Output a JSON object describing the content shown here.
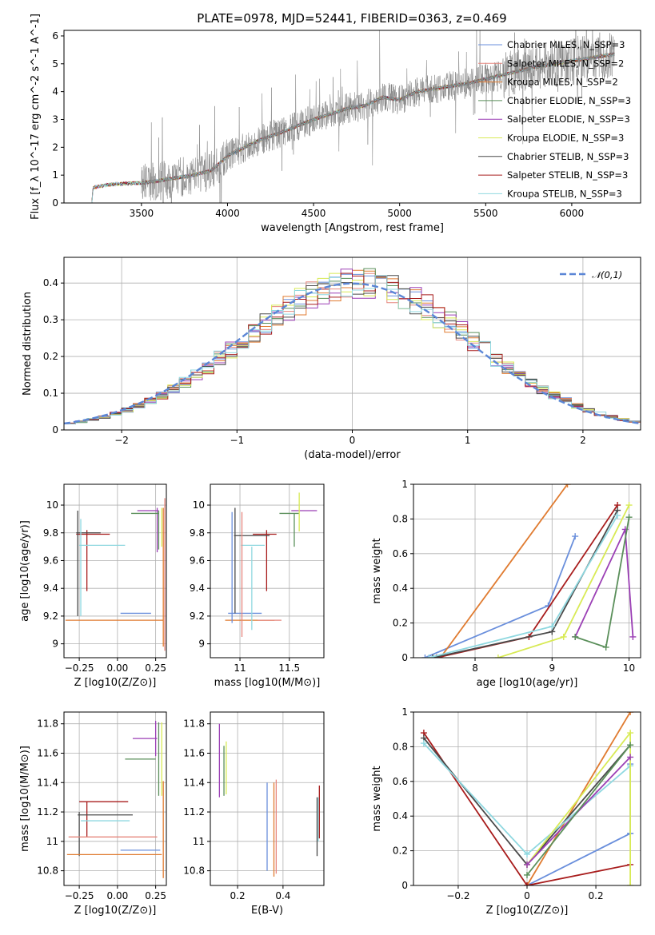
{
  "figure_title": "PLATE=0978, MJD=52441, FIBERID=0363, z=0.469",
  "models": [
    {
      "name": "Chabrier MILES, N_SSP=3",
      "color": "#6a8fdc"
    },
    {
      "name": "Salpeter MILES, N_SSP=2",
      "color": "#e6867d"
    },
    {
      "name": "Kroupa MILES, N_SSP=2",
      "color": "#e07b30"
    },
    {
      "name": "Chabrier ELODIE, N_SSP=3",
      "color": "#5a8f5a"
    },
    {
      "name": "Salpeter ELODIE, N_SSP=3",
      "color": "#9b3fb5"
    },
    {
      "name": "Kroupa ELODIE, N_SSP=3",
      "color": "#d8ea55"
    },
    {
      "name": "Chabrier STELIB, N_SSP=3",
      "color": "#4a4a4a"
    },
    {
      "name": "Salpeter STELIB, N_SSP=3",
      "color": "#a81c1c"
    },
    {
      "name": "Kroupa STELIB, N_SSP=3",
      "color": "#8fd8e0"
    }
  ],
  "chart_data": [
    {
      "id": "spectrum",
      "type": "line",
      "xlabel": "wavelength [Angstrom, rest frame]",
      "ylabel": "Flux [f_λ 10^-17 erg cm^-2 s^-1 A^-1]",
      "xlim": [
        3050,
        6400
      ],
      "ylim": [
        0,
        6.2
      ],
      "xticks": [
        3500,
        4000,
        4500,
        5000,
        5500,
        6000
      ],
      "yticks": [
        0,
        1,
        2,
        3,
        4,
        5,
        6
      ],
      "data_color": "#808080",
      "continuum": [
        [
          3200,
          0
        ],
        [
          3210,
          0.0
        ],
        [
          3220,
          0.55
        ],
        [
          3300,
          0.65
        ],
        [
          3400,
          0.7
        ],
        [
          3500,
          0.72
        ],
        [
          3600,
          0.8
        ],
        [
          3700,
          0.9
        ],
        [
          3800,
          1.0
        ],
        [
          3900,
          1.15
        ],
        [
          3950,
          1.4
        ],
        [
          4000,
          1.7
        ],
        [
          4100,
          2.0
        ],
        [
          4200,
          2.3
        ],
        [
          4300,
          2.5
        ],
        [
          4400,
          2.75
        ],
        [
          4500,
          3.0
        ],
        [
          4600,
          3.2
        ],
        [
          4700,
          3.4
        ],
        [
          4800,
          3.5
        ],
        [
          4900,
          3.8
        ],
        [
          5000,
          3.7
        ],
        [
          5100,
          4.0
        ],
        [
          5200,
          4.1
        ],
        [
          5300,
          4.2
        ],
        [
          5400,
          4.3
        ],
        [
          5500,
          4.45
        ],
        [
          5600,
          4.6
        ],
        [
          5700,
          4.75
        ],
        [
          5800,
          4.9
        ],
        [
          5900,
          5.0
        ],
        [
          6000,
          5.1
        ],
        [
          6100,
          5.2
        ],
        [
          6200,
          5.3
        ],
        [
          6250,
          5.35
        ]
      ],
      "data_range": [
        3500,
        6250
      ],
      "data_noise": 0.55
    },
    {
      "id": "residuals",
      "type": "step",
      "xlabel": "(data-model)/error",
      "ylabel": "Normed distribution",
      "xlim": [
        -2.5,
        2.5
      ],
      "ylim": [
        0,
        0.47
      ],
      "xticks": [
        -2,
        -1,
        0,
        1,
        2
      ],
      "yticks": [
        0.0,
        0.1,
        0.2,
        0.3,
        0.4
      ],
      "gaussian_label": "𝒩(0,1)",
      "gaussian_color": "#5b86d6",
      "bin_width": 0.1
    },
    {
      "id": "age_vs_Z",
      "type": "errorbar",
      "xlabel": "Z [log10(Z/Z⊙)]",
      "ylabel": "age [log10(age/yr)]",
      "xlim": [
        -0.35,
        0.32
      ],
      "ylim": [
        8.9,
        10.15
      ],
      "xticks": [
        -0.25,
        0.0,
        0.25
      ],
      "yticks": [
        9.0,
        9.2,
        9.4,
        9.6,
        9.8,
        10.0
      ],
      "points": [
        {
          "model": 0,
          "x": 0.12,
          "y": 9.22,
          "xe": 0.1,
          "ye": 0
        },
        {
          "model": 2,
          "x": -0.02,
          "y": 9.17,
          "xe": 0.32,
          "ye": 0
        },
        {
          "model": 2,
          "x": 0.3,
          "y": 9.48,
          "xe": 0,
          "ye": 0.5
        },
        {
          "model": 7,
          "x": -0.16,
          "y": 9.79,
          "xe": 0.11,
          "ye": 0
        },
        {
          "model": 7,
          "x": -0.2,
          "y": 9.6,
          "xe": 0,
          "ye": 0.22
        },
        {
          "model": 6,
          "x": -0.19,
          "y": 9.8,
          "xe": 0.08,
          "ye": 0
        },
        {
          "model": 6,
          "x": -0.26,
          "y": 9.58,
          "xe": 0,
          "ye": 0.38
        },
        {
          "model": 8,
          "x": -0.1,
          "y": 9.71,
          "xe": 0.15,
          "ye": 0
        },
        {
          "model": 8,
          "x": -0.24,
          "y": 9.55,
          "xe": 0,
          "ye": 0.35
        },
        {
          "model": 4,
          "x": 0.2,
          "y": 9.96,
          "xe": 0.07,
          "ye": 0
        },
        {
          "model": 4,
          "x": 0.26,
          "y": 9.82,
          "xe": 0,
          "ye": 0.16
        },
        {
          "model": 3,
          "x": 0.18,
          "y": 9.94,
          "xe": 0.09,
          "ye": 0
        },
        {
          "model": 3,
          "x": 0.27,
          "y": 9.82,
          "xe": 0,
          "ye": 0.14
        },
        {
          "model": 5,
          "x": 0.29,
          "y": 9.84,
          "xe": 0,
          "ye": 0.14
        },
        {
          "model": 1,
          "x": 0.31,
          "y": 9.5,
          "xe": 0,
          "ye": 0.55
        }
      ]
    },
    {
      "id": "age_vs_mass",
      "type": "errorbar",
      "xlabel": "mass [log10(M/M⊙)]",
      "ylabel": "",
      "xlim": [
        10.7,
        11.85
      ],
      "ylim": [
        8.9,
        10.15
      ],
      "xticks": [
        11.0,
        11.5
      ],
      "yticks": [
        9.0,
        9.2,
        9.4,
        9.6,
        9.8,
        10.0
      ],
      "points": [
        {
          "model": 0,
          "x": 11.05,
          "y": 9.22,
          "xe": 0.17,
          "ye": 0
        },
        {
          "model": 2,
          "x": 11.1,
          "y": 9.17,
          "xe": 0.25,
          "ye": 0
        },
        {
          "model": 7,
          "x": 11.25,
          "y": 9.79,
          "xe": 0.12,
          "ye": 0
        },
        {
          "model": 7,
          "x": 11.27,
          "y": 9.6,
          "xe": 0,
          "ye": 0.22
        },
        {
          "model": 6,
          "x": 11.12,
          "y": 9.78,
          "xe": 0.18,
          "ye": 0
        },
        {
          "model": 8,
          "x": 11.13,
          "y": 9.71,
          "xe": 0.12,
          "ye": 0
        },
        {
          "model": 4,
          "x": 11.65,
          "y": 9.96,
          "xe": 0.13,
          "ye": 0
        },
        {
          "model": 3,
          "x": 11.5,
          "y": 9.94,
          "xe": 0.1,
          "ye": 0
        },
        {
          "model": 3,
          "x": 11.55,
          "y": 9.82,
          "xe": 0,
          "ye": 0.12
        },
        {
          "model": 5,
          "x": 11.6,
          "y": 9.95,
          "xe": 0,
          "ye": 0.14
        },
        {
          "model": 0,
          "x": 10.92,
          "y": 9.55,
          "xe": 0,
          "ye": 0.4
        },
        {
          "model": 1,
          "x": 11.02,
          "y": 9.5,
          "xe": 0,
          "ye": 0.45
        },
        {
          "model": 6,
          "x": 10.95,
          "y": 9.6,
          "xe": 0,
          "ye": 0.38
        },
        {
          "model": 8,
          "x": 11.12,
          "y": 9.4,
          "xe": 0,
          "ye": 0.3
        },
        {
          "model": 1,
          "x": 11.3,
          "y": 9.17,
          "xe": 0.12,
          "ye": 0
        }
      ]
    },
    {
      "id": "weight_vs_age",
      "type": "line",
      "xlabel": "age [log10(age/yr)]",
      "ylabel": "mass weight",
      "xlim": [
        7.2,
        10.15
      ],
      "ylim": [
        0,
        1
      ],
      "xticks": [
        8,
        9,
        10
      ],
      "yticks": [
        0.0,
        0.2,
        0.4,
        0.6,
        0.8,
        1.0
      ],
      "series": [
        {
          "model": 0,
          "x": [
            7.35,
            8.95,
            9.3
          ],
          "y": [
            0.0,
            0.3,
            0.7
          ]
        },
        {
          "model": 2,
          "x": [
            7.55,
            9.2
          ],
          "y": [
            0.0,
            1.0
          ]
        },
        {
          "model": 7,
          "x": [
            7.5,
            8.7,
            9.85
          ],
          "y": [
            0.0,
            0.12,
            0.88
          ]
        },
        {
          "model": 6,
          "x": [
            7.45,
            9.0,
            9.85
          ],
          "y": [
            0.0,
            0.15,
            0.85
          ]
        },
        {
          "model": 8,
          "x": [
            7.4,
            9.0,
            9.85
          ],
          "y": [
            0.0,
            0.18,
            0.82
          ]
        },
        {
          "model": 5,
          "x": [
            8.3,
            9.15,
            10.0
          ],
          "y": [
            0.0,
            0.12,
            0.88
          ]
        },
        {
          "model": 4,
          "x": [
            9.3,
            9.95,
            10.05
          ],
          "y": [
            0.12,
            0.74,
            0.12
          ]
        },
        {
          "model": 3,
          "x": [
            9.3,
            9.7,
            10.0
          ],
          "y": [
            0.12,
            0.06,
            0.81
          ]
        }
      ]
    },
    {
      "id": "mass_vs_Z",
      "type": "errorbar",
      "xlabel": "Z [log10(Z/Z⊙)]",
      "ylabel": "mass [log10(M/M⊙)]",
      "xlim": [
        -0.35,
        0.32
      ],
      "ylim": [
        10.7,
        11.88
      ],
      "xticks": [
        -0.25,
        0.0,
        0.25
      ],
      "yticks": [
        10.8,
        11.0,
        11.2,
        11.4,
        11.6,
        11.8
      ],
      "points": [
        {
          "model": 4,
          "x": 0.18,
          "y": 11.7,
          "xe": 0.08,
          "ye": 0
        },
        {
          "model": 4,
          "x": 0.25,
          "y": 11.7,
          "xe": 0,
          "ye": 0.12
        },
        {
          "model": 3,
          "x": 0.15,
          "y": 11.56,
          "xe": 0.1,
          "ye": 0
        },
        {
          "model": 3,
          "x": 0.27,
          "y": 11.56,
          "xe": 0,
          "ye": 0.25
        },
        {
          "model": 5,
          "x": 0.29,
          "y": 11.56,
          "xe": 0,
          "ye": 0.25
        },
        {
          "model": 7,
          "x": -0.09,
          "y": 11.27,
          "xe": 0.16,
          "ye": 0
        },
        {
          "model": 7,
          "x": -0.2,
          "y": 11.15,
          "xe": 0,
          "ye": 0.12
        },
        {
          "model": 6,
          "x": -0.08,
          "y": 11.18,
          "xe": 0.18,
          "ye": 0
        },
        {
          "model": 6,
          "x": -0.25,
          "y": 11.05,
          "xe": 0,
          "ye": 0.15
        },
        {
          "model": 8,
          "x": -0.08,
          "y": 11.14,
          "xe": 0.16,
          "ye": 0
        },
        {
          "model": 1,
          "x": -0.03,
          "y": 11.03,
          "xe": 0.29,
          "ye": 0
        },
        {
          "model": 0,
          "x": 0.15,
          "y": 10.94,
          "xe": 0.13,
          "ye": 0
        },
        {
          "model": 2,
          "x": -0.02,
          "y": 10.91,
          "xe": 0.31,
          "ye": 0
        },
        {
          "model": 2,
          "x": 0.3,
          "y": 11.08,
          "xe": 0,
          "ye": 0.33
        }
      ]
    },
    {
      "id": "mass_vs_EBV",
      "type": "errorbar",
      "xlabel": "E(B-V)",
      "ylabel": "",
      "xlim": [
        0.08,
        0.58
      ],
      "ylim": [
        10.7,
        11.88
      ],
      "xticks": [
        0.2,
        0.4
      ],
      "yticks": [
        10.8,
        11.0,
        11.2,
        11.4,
        11.6,
        11.8
      ],
      "points": [
        {
          "model": 4,
          "x": 0.12,
          "y": 11.55,
          "xe": 0,
          "ye": 0.25
        },
        {
          "model": 3,
          "x": 0.14,
          "y": 11.48,
          "xe": 0,
          "ye": 0.17
        },
        {
          "model": 5,
          "x": 0.15,
          "y": 11.5,
          "xe": 0,
          "ye": 0.18
        },
        {
          "model": 0,
          "x": 0.33,
          "y": 11.1,
          "xe": 0,
          "ye": 0.3
        },
        {
          "model": 2,
          "x": 0.36,
          "y": 11.08,
          "xe": 0,
          "ye": 0.32
        },
        {
          "model": 1,
          "x": 0.37,
          "y": 11.1,
          "xe": 0,
          "ye": 0.32
        },
        {
          "model": 6,
          "x": 0.55,
          "y": 11.1,
          "xe": 0,
          "ye": 0.2
        },
        {
          "model": 7,
          "x": 0.56,
          "y": 11.2,
          "xe": 0,
          "ye": 0.18
        },
        {
          "model": 8,
          "x": 0.555,
          "y": 11.15,
          "xe": 0,
          "ye": 0.15
        }
      ]
    },
    {
      "id": "weight_vs_Z",
      "type": "line",
      "xlabel": "Z [log10(Z/Z⊙)]",
      "ylabel": "mass weight",
      "xlim": [
        -0.33,
        0.33
      ],
      "ylim": [
        0,
        1
      ],
      "xticks": [
        -0.2,
        0.0,
        0.2
      ],
      "yticks": [
        0.0,
        0.2,
        0.4,
        0.6,
        0.8,
        1.0
      ],
      "series": [
        {
          "model": 0,
          "x": [
            0.0,
            0.3
          ],
          "y": [
            0.0,
            0.3
          ]
        },
        {
          "model": 0,
          "x": [
            0.3,
            0.3
          ],
          "y": [
            0.3,
            0.7
          ]
        },
        {
          "model": 2,
          "x": [
            0.0,
            0.3
          ],
          "y": [
            0.0,
            1.0
          ]
        },
        {
          "model": 7,
          "x": [
            -0.3,
            0.0,
            0.3
          ],
          "y": [
            0.88,
            0.0,
            0.12
          ]
        },
        {
          "model": 6,
          "x": [
            -0.3,
            0.0,
            0.3
          ],
          "y": [
            0.85,
            0.12,
            0.81
          ]
        },
        {
          "model": 8,
          "x": [
            -0.3,
            0.0,
            0.3
          ],
          "y": [
            0.82,
            0.18,
            0.69
          ]
        },
        {
          "model": 5,
          "x": [
            0.0,
            0.3,
            0.3
          ],
          "y": [
            0.12,
            0.88,
            0.0
          ]
        },
        {
          "model": 4,
          "x": [
            0.0,
            0.3
          ],
          "y": [
            0.12,
            0.74
          ]
        },
        {
          "model": 3,
          "x": [
            0.0,
            0.3
          ],
          "y": [
            0.06,
            0.81
          ]
        }
      ]
    }
  ]
}
